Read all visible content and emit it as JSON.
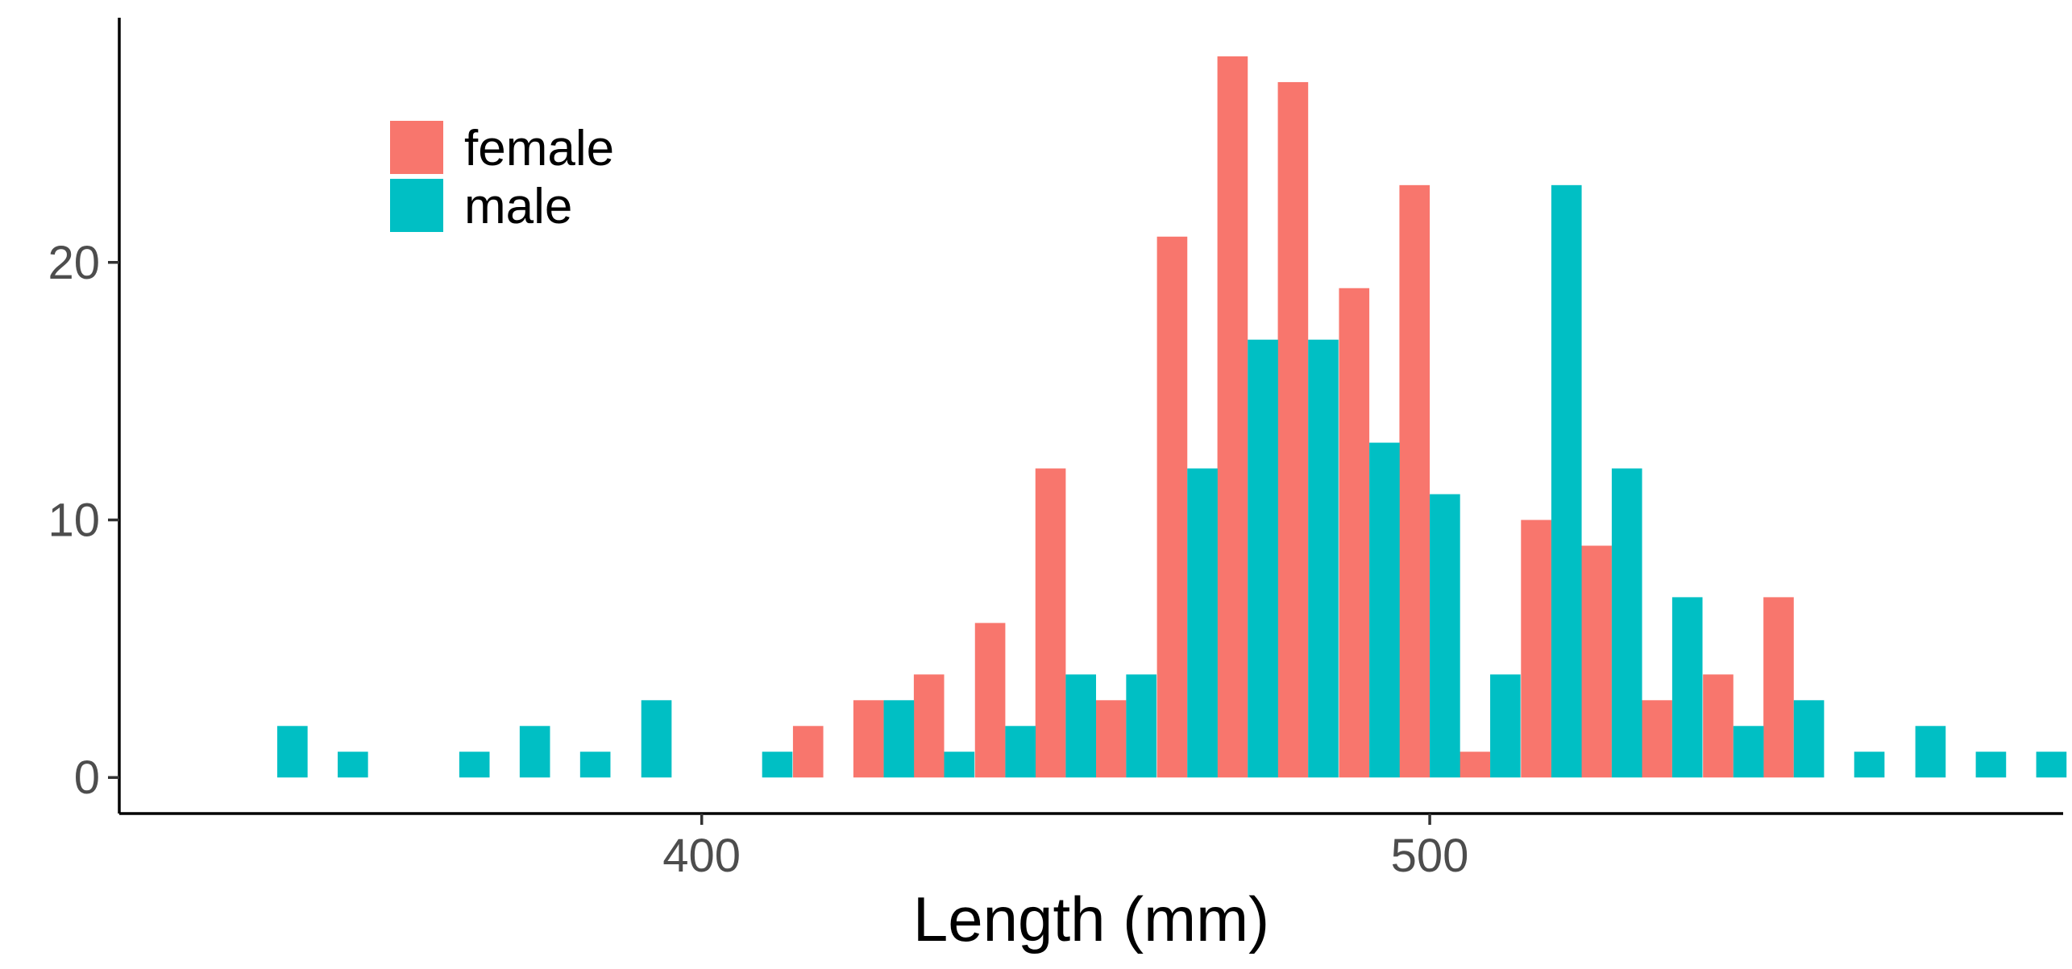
{
  "chart_data": {
    "type": "bar",
    "title": "",
    "xlabel": "Length (mm)",
    "ylabel": "",
    "xlim": [
      320,
      587
    ],
    "ylim": [
      -1.4,
      29.5
    ],
    "x_ticks": [
      400,
      500
    ],
    "y_ticks": [
      0,
      10,
      20
    ],
    "grid": false,
    "legend_position": "top-left",
    "bin_width": 8.33,
    "bin_centers": [
      341.7,
      350.0,
      358.3,
      366.7,
      375.0,
      383.3,
      391.7,
      400.0,
      408.3,
      416.7,
      425.0,
      433.3,
      441.7,
      450.0,
      458.3,
      466.7,
      475.0,
      483.3,
      491.7,
      500.0,
      508.3,
      516.7,
      525.0,
      533.3,
      541.7,
      550.0,
      558.3,
      566.7,
      575.0,
      583.3
    ],
    "series": [
      {
        "name": "female",
        "color": "#F8766D",
        "values": [
          0,
          0,
          0,
          0,
          0,
          0,
          0,
          0,
          0,
          2,
          3,
          4,
          6,
          12,
          3,
          21,
          28,
          27,
          19,
          23,
          1,
          10,
          9,
          3,
          4,
          7,
          0,
          0,
          0,
          0
        ]
      },
      {
        "name": "male",
        "color": "#00BFC4",
        "values": [
          2,
          1,
          0,
          1,
          2,
          1,
          3,
          0,
          1,
          0,
          3,
          1,
          2,
          4,
          4,
          12,
          17,
          17,
          13,
          11,
          4,
          23,
          12,
          7,
          2,
          3,
          1,
          2,
          1,
          1
        ]
      }
    ]
  }
}
